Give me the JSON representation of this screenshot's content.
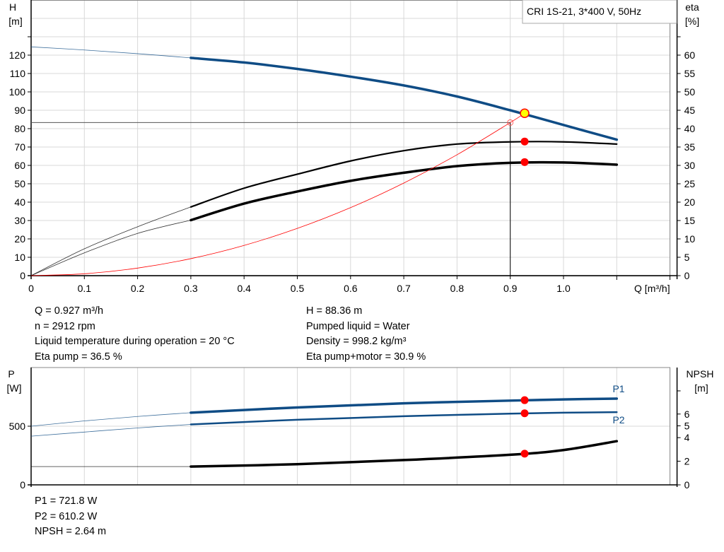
{
  "chart_data": [
    {
      "type": "line",
      "legend_box": "CRI 1S-21, 3*400 V, 50Hz",
      "xlabel": "Q [m³/h]",
      "ylabel_left": [
        "H",
        "[m]"
      ],
      "ylabel_right": [
        "eta",
        "[%]"
      ],
      "xlim": [
        0,
        1.2
      ],
      "ylim_left": [
        0,
        130
      ],
      "ylim_right": [
        0,
        65
      ],
      "x_ticks": [
        "0",
        "0.1",
        "0.2",
        "0.3",
        "0.4",
        "0.5",
        "0.6",
        "0.7",
        "0.8",
        "0.9",
        "1.0"
      ],
      "y_ticks_left": [
        "0",
        "10",
        "20",
        "30",
        "40",
        "50",
        "60",
        "70",
        "80",
        "90",
        "100",
        "110",
        "120"
      ],
      "y_ticks_right": [
        "0",
        "5",
        "10",
        "15",
        "20",
        "25",
        "30",
        "35",
        "40",
        "45",
        "50",
        "55",
        "60"
      ],
      "grid": true,
      "series": [
        {
          "id": "H",
          "axis": "left",
          "color": "#0f4c85",
          "thin_until": 0.3,
          "x": [
            0,
            0.1,
            0.2,
            0.3,
            0.4,
            0.5,
            0.6,
            0.7,
            0.8,
            0.9,
            1.0,
            1.1
          ],
          "y": [
            124.5,
            122.8,
            120.8,
            118.5,
            116,
            112.5,
            108.3,
            103.5,
            97.5,
            90,
            82,
            74
          ]
        },
        {
          "id": "eta_pump",
          "axis": "right",
          "color": "#000000",
          "thin_until": 0.3,
          "x": [
            0,
            0.1,
            0.2,
            0.3,
            0.4,
            0.5,
            0.6,
            0.7,
            0.8,
            0.9,
            1.0,
            1.1
          ],
          "y": [
            0,
            7.3,
            13.3,
            18.7,
            23.8,
            27.6,
            31.2,
            34,
            35.8,
            36.4,
            36.4,
            35.8
          ]
        },
        {
          "id": "eta_pump_motor",
          "axis": "right",
          "color": "#000000",
          "thin_until": 0.3,
          "x": [
            0,
            0.1,
            0.2,
            0.3,
            0.4,
            0.5,
            0.6,
            0.7,
            0.8,
            0.9,
            1.0,
            1.1
          ],
          "y": [
            0,
            6.2,
            11.5,
            15.1,
            19.6,
            22.9,
            25.8,
            28,
            29.8,
            30.7,
            30.8,
            30.2
          ]
        },
        {
          "id": "system_curve",
          "axis": "left",
          "color": "#ff0000",
          "x": [
            0,
            0.1,
            0.2,
            0.3,
            0.4,
            0.5,
            0.6,
            0.7,
            0.8,
            0.9,
            0.927
          ],
          "y": [
            0,
            1.03,
            4.11,
            9.25,
            16.45,
            25.7,
            37,
            50.4,
            65.8,
            83.3,
            88.36
          ]
        }
      ],
      "duty_point": {
        "Q": 0.927,
        "H": 88.36,
        "eta_pump": 36.5,
        "eta_pump_motor": 30.9
      },
      "requested_point": {
        "Q": 0.9,
        "H": 83.3
      }
    },
    {
      "type": "line",
      "ylabel_left": [
        "P",
        "[W]"
      ],
      "ylabel_right": [
        "NPSH",
        "[m]"
      ],
      "xlim": [
        0,
        1.2
      ],
      "ylim_left": [
        0,
        1000
      ],
      "ylim_right": [
        0,
        8
      ],
      "y_ticks_left": [
        "0",
        "500"
      ],
      "y_ticks_right": [
        "0",
        "2",
        "4",
        "5",
        "6"
      ],
      "grid": true,
      "series": [
        {
          "id": "P1",
          "name": "P1",
          "axis": "left",
          "color": "#0f4c85",
          "thin_until": 0.3,
          "x": [
            0,
            0.1,
            0.2,
            0.3,
            0.5,
            0.7,
            0.9,
            1.0,
            1.1
          ],
          "y": [
            500,
            545,
            583,
            615,
            660,
            695,
            718,
            728,
            735
          ]
        },
        {
          "id": "P2",
          "name": "P2",
          "axis": "left",
          "color": "#0f4c85",
          "thin_until": 0.3,
          "x": [
            0,
            0.1,
            0.2,
            0.3,
            0.5,
            0.7,
            0.9,
            1.0,
            1.1
          ],
          "y": [
            415,
            450,
            485,
            515,
            555,
            585,
            607,
            615,
            620
          ]
        },
        {
          "id": "NPSH",
          "axis": "right",
          "color": "#000000",
          "thin_until": 0.3,
          "x": [
            0,
            0.1,
            0.2,
            0.3,
            0.5,
            0.7,
            0.9,
            1.0,
            1.1
          ],
          "y": [
            1.55,
            1.55,
            1.55,
            1.55,
            1.75,
            2.1,
            2.55,
            2.95,
            3.7
          ]
        }
      ],
      "duty_point": {
        "Q": 0.927,
        "P1": 721.8,
        "P2": 610.2,
        "NPSH": 2.64
      }
    }
  ],
  "results_top": {
    "left": [
      "Q = 0.927 m³/h",
      "n = 2912 rpm",
      "Liquid temperature during operation = 20 °C",
      "Eta pump = 36.5 %"
    ],
    "right": [
      "H = 88.36 m",
      "Pumped liquid = Water",
      "Density = 998.2 kg/m³",
      "Eta pump+motor = 30.9 %"
    ]
  },
  "results_bottom": [
    "P1 = 721.8 W",
    "P2 = 610.2 W",
    "NPSH = 2.64 m"
  ]
}
